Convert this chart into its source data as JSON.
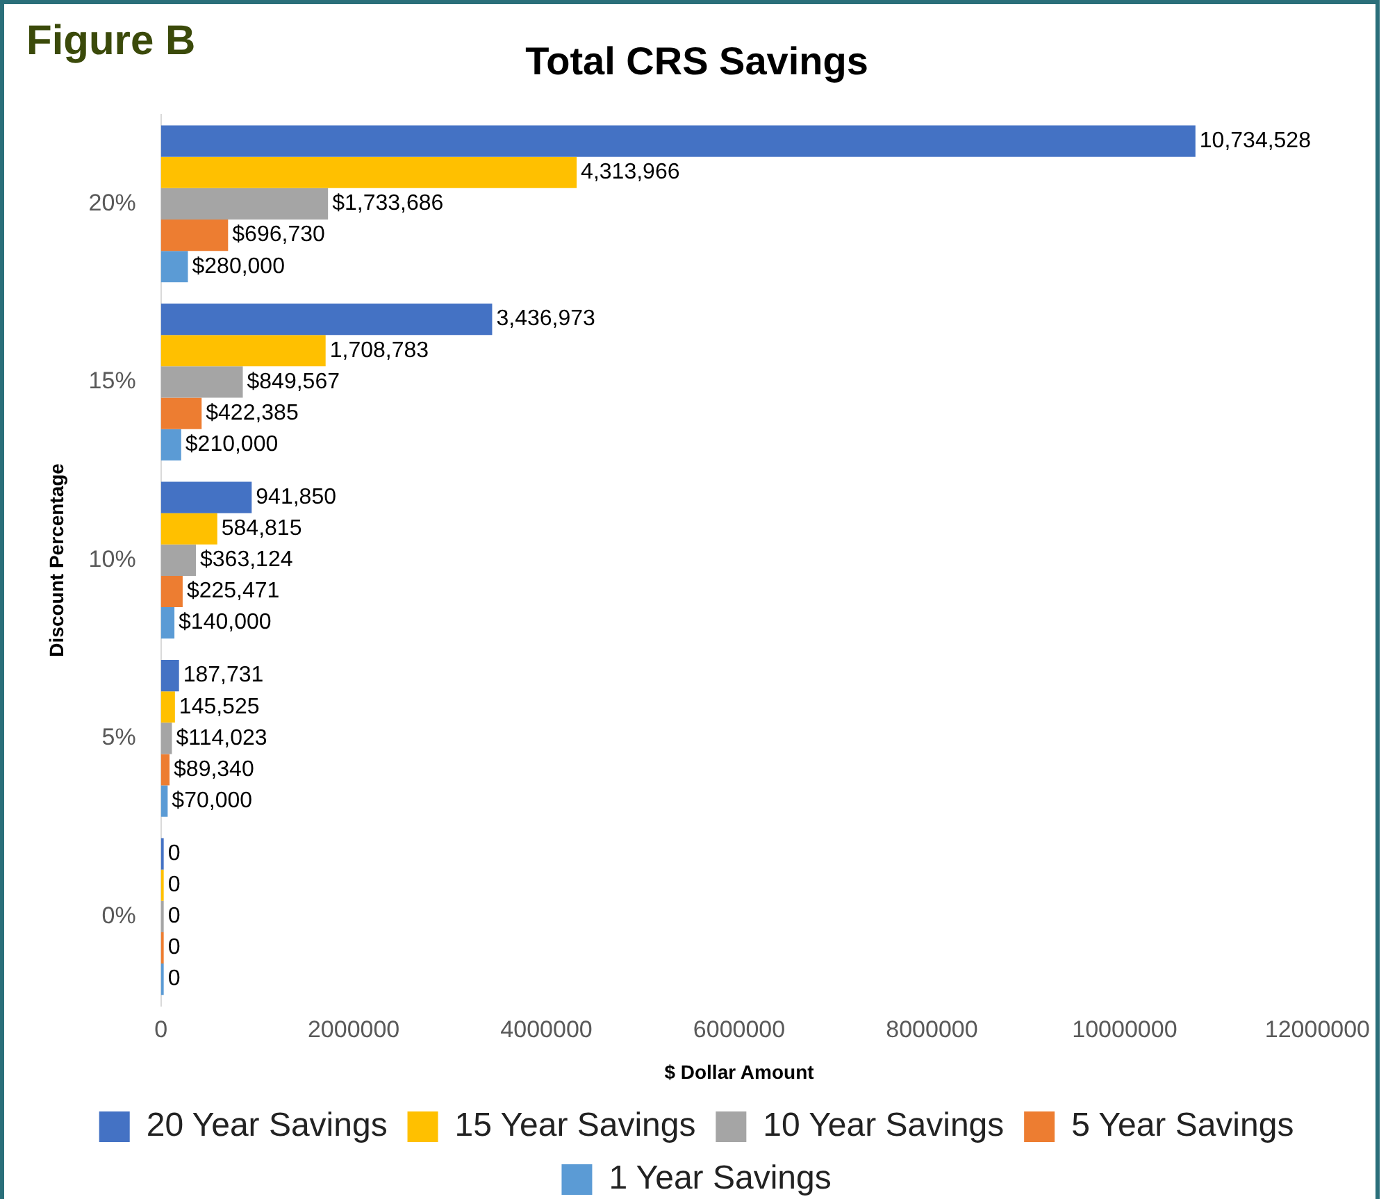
{
  "chart_data": {
    "type": "bar",
    "orientation": "horizontal",
    "title": "Total CRS Savings",
    "xlabel": "$ Dollar Amount",
    "ylabel": "Discount Percentage",
    "annotations": [
      "Figure B"
    ],
    "categories": [
      "20%",
      "15%",
      "10%",
      "5%",
      "0%"
    ],
    "series": [
      {
        "name": "20 Year Savings",
        "color": "#4472c4",
        "values": [
          10734528,
          3436973,
          941850,
          187731,
          0
        ],
        "value_labels": [
          "10,734,528",
          "3,436,973",
          "941,850",
          "187,731",
          "0"
        ]
      },
      {
        "name": "15 Year Savings",
        "color": "#ffc000",
        "values": [
          4313966,
          1708783,
          584815,
          145525,
          0
        ],
        "value_labels": [
          "4,313,966",
          "1,708,783",
          "584,815",
          "145,525",
          "0"
        ]
      },
      {
        "name": "10 Year Savings",
        "color": "#a5a5a5",
        "values": [
          1733686,
          849567,
          363124,
          114023,
          0
        ],
        "value_labels": [
          "$1,733,686",
          "$849,567",
          "$363,124",
          "$114,023",
          "0"
        ]
      },
      {
        "name": "5 Year Savings",
        "color": "#ed7d31",
        "values": [
          696730,
          422385,
          225471,
          89340,
          0
        ],
        "value_labels": [
          "$696,730",
          "$422,385",
          "$225,471",
          "$89,340",
          "0"
        ]
      },
      {
        "name": "1 Year Savings",
        "color": "#5b9bd5",
        "values": [
          280000,
          210000,
          140000,
          70000,
          0
        ],
        "value_labels": [
          "$280,000",
          "$210,000",
          "$140,000",
          "$70,000",
          "0"
        ]
      }
    ],
    "xlim": [
      0,
      12000000
    ],
    "xticks": [
      0,
      2000000,
      4000000,
      6000000,
      8000000,
      10000000,
      12000000
    ],
    "legend": "bottom"
  }
}
